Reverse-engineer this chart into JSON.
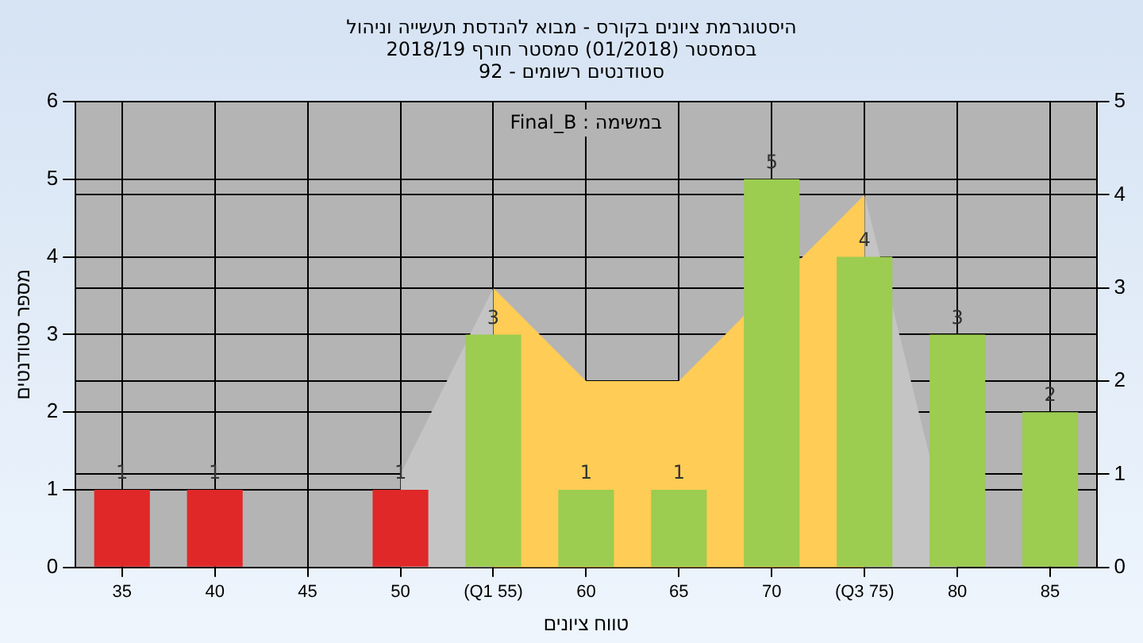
{
  "chart_data": {
    "type": "bar",
    "title": "היסטוגרמת ציונים בקורס - מבוא להנדסת תעשייה וניהול",
    "subtitle": "בסמסטר  (01/2018)  סמסטר חורף 2018/19",
    "annotations": [
      "סטודנטים רשומים - 92",
      "במשימה : Final_B"
    ],
    "xlabel": "טווח ציונים",
    "ylabel": "מספר סטודנטים",
    "categories": [
      "35",
      "40",
      "45",
      "50",
      "(Q1 55)",
      "60",
      "65",
      "70",
      "(Q3 75)",
      "80",
      "85"
    ],
    "series": [
      {
        "colors": [
          "#e02828",
          "#e02828",
          "#e02828",
          "#e02828",
          "#9ccc50",
          "#9ccc50",
          "#9ccc50",
          "#9ccc50",
          "#9ccc50",
          "#9ccc50",
          "#9ccc50"
        ],
        "values": [
          1,
          1,
          0,
          1,
          3,
          1,
          1,
          5,
          4,
          3,
          2
        ],
        "value_labels": [
          "1",
          "1",
          null,
          "1",
          "3",
          "1",
          "1",
          "5",
          "4",
          "3",
          "2"
        ]
      },
      {
        "type": "area",
        "axis": "y2",
        "color": "#c4c4c4",
        "values": [
          null,
          null,
          null,
          1,
          3,
          null,
          null,
          null,
          null,
          null,
          null
        ]
      },
      {
        "type": "area",
        "axis": "y2",
        "color": "#c4c4c4",
        "values": [
          null,
          null,
          null,
          null,
          null,
          null,
          null,
          null,
          4,
          0,
          null
        ]
      },
      {
        "type": "area",
        "axis": "y2",
        "color": "#ffcc55",
        "values": [
          null,
          null,
          null,
          null,
          3,
          2,
          2,
          null,
          4,
          null,
          null
        ]
      }
    ],
    "ylim": [
      0,
      6
    ],
    "yticks": [
      0,
      1,
      2,
      3,
      4,
      5,
      6
    ],
    "y2lim": [
      0,
      5
    ],
    "y2ticks": [
      0,
      1,
      2,
      3,
      4,
      5
    ],
    "grid": true,
    "legend": false
  }
}
